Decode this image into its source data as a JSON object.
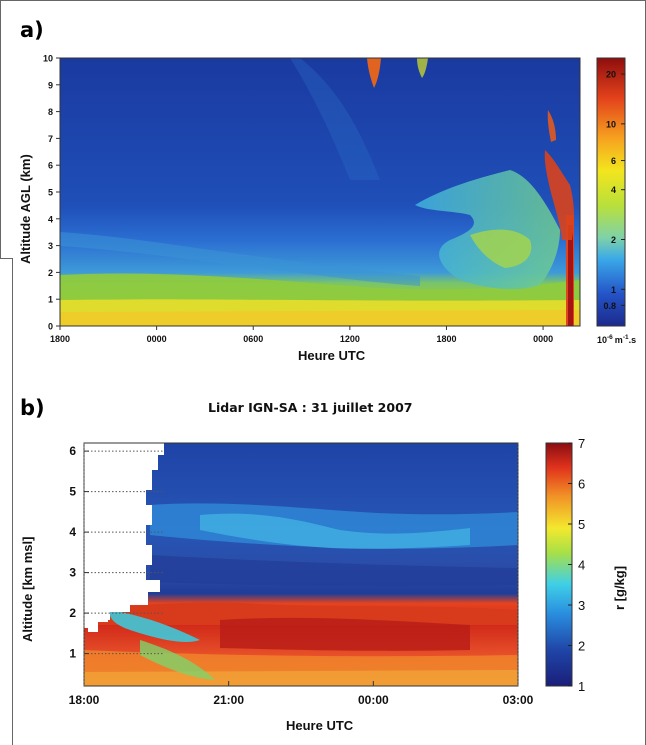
{
  "chart_data": [
    {
      "panel": "a)",
      "type": "heatmap",
      "title": "",
      "xlabel": "Heure UTC",
      "ylabel": "Altitude AGL (km)",
      "x_ticks": [
        "1800",
        "0000",
        "0600",
        "1200",
        "1800",
        "0000"
      ],
      "y_ticks": [
        0,
        1,
        2,
        3,
        4,
        5,
        6,
        7,
        8,
        9,
        10
      ],
      "ylim": [
        0,
        10
      ],
      "colorbar": {
        "unit_text": "10",
        "unit_exponent": "-6",
        "unit_rest": "m",
        "unit_rest_exponent": "-1",
        "unit_tail": ".s",
        "ticks": [
          0.8,
          1,
          2,
          4,
          6,
          10,
          20
        ],
        "range": [
          0.6,
          25
        ],
        "scale": "log"
      }
    },
    {
      "panel": "b)",
      "type": "heatmap",
      "title": "Lidar IGN-SA : 31 juillet 2007",
      "xlabel": "Heure UTC",
      "ylabel": "Altitude [km msl]",
      "x_ticks": [
        "18:00",
        "21:00",
        "00:00",
        "03:00"
      ],
      "y_ticks": [
        1,
        2,
        3,
        4,
        5,
        6
      ],
      "ylim": [
        0.2,
        6.2
      ],
      "colorbar": {
        "label": "r [g/kg]",
        "ticks": [
          1,
          2,
          3,
          4,
          5,
          6,
          7
        ],
        "range": [
          1,
          7
        ]
      }
    }
  ]
}
